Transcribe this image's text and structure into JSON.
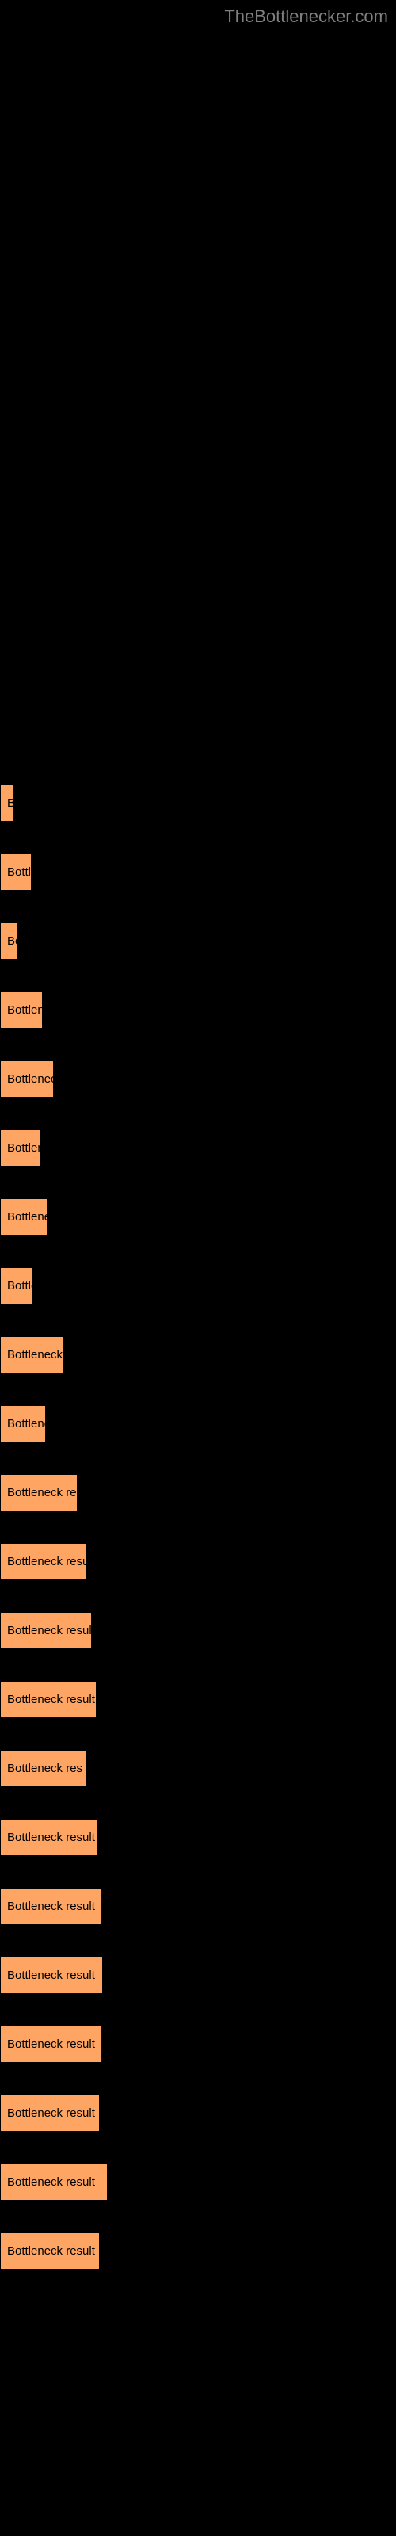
{
  "watermark": "TheBottlenecker.com",
  "buttons": [
    {
      "label": "B",
      "width": 12
    },
    {
      "label": "Bottle",
      "width": 40
    },
    {
      "label": "Bo",
      "width": 22
    },
    {
      "label": "Bottlene",
      "width": 54
    },
    {
      "label": "Bottleneck",
      "width": 68
    },
    {
      "label": "Bottlene",
      "width": 52
    },
    {
      "label": "Bottlenec",
      "width": 60
    },
    {
      "label": "Bottle",
      "width": 42
    },
    {
      "label": "Bottleneck r",
      "width": 80
    },
    {
      "label": "Bottlene",
      "width": 58
    },
    {
      "label": "Bottleneck resu",
      "width": 98
    },
    {
      "label": "Bottleneck result",
      "width": 110
    },
    {
      "label": "Bottleneck result",
      "width": 116
    },
    {
      "label": "Bottleneck result",
      "width": 122
    },
    {
      "label": "Bottleneck res",
      "width": 110
    },
    {
      "label": "Bottleneck result",
      "width": 124
    },
    {
      "label": "Bottleneck result",
      "width": 128
    },
    {
      "label": "Bottleneck result",
      "width": 130
    },
    {
      "label": "Bottleneck result",
      "width": 128
    },
    {
      "label": "Bottleneck result",
      "width": 126
    },
    {
      "label": "Bottleneck result",
      "width": 136
    },
    {
      "label": "Bottleneck result",
      "width": 126
    }
  ],
  "colors": {
    "background": "#000000",
    "button_bg": "#ffa563",
    "button_text": "#000000",
    "watermark": "#808080"
  }
}
